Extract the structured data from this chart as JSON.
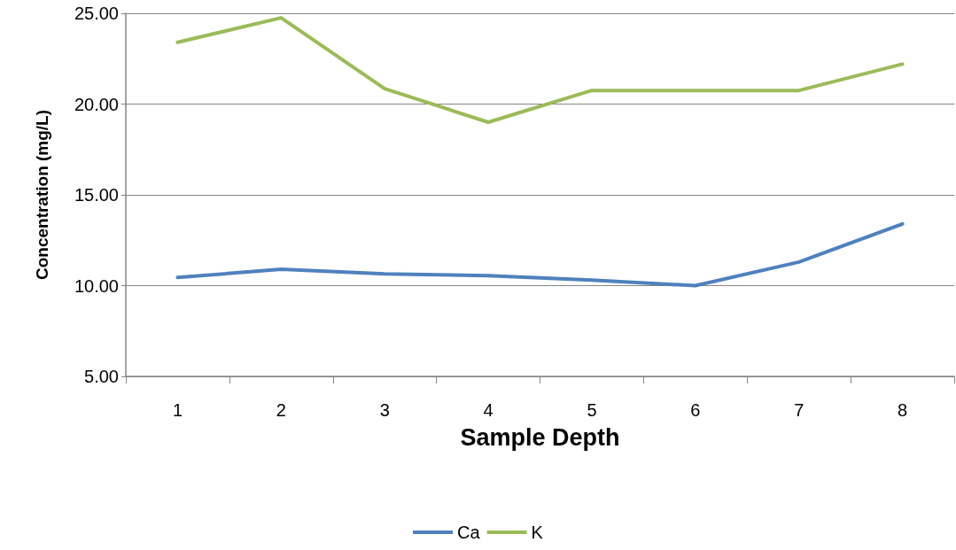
{
  "chart_data": {
    "type": "line",
    "xlabel": "Sample Depth",
    "ylabel": "Concentration (mg/L)",
    "categories": [
      "1",
      "2",
      "3",
      "4",
      "5",
      "6",
      "7",
      "8"
    ],
    "series": [
      {
        "name": "Ca",
        "color": "#4f81bd",
        "values": [
          10.45,
          10.9,
          10.65,
          10.55,
          10.3,
          10.0,
          11.3,
          13.4
        ]
      },
      {
        "name": "K",
        "color": "#9bbb59",
        "values": [
          23.4,
          24.75,
          20.85,
          19.0,
          20.75,
          20.75,
          20.75,
          22.2
        ]
      }
    ],
    "ylim": [
      5,
      25
    ],
    "yticks": [
      {
        "value": 5,
        "label": "5.00"
      },
      {
        "value": 10,
        "label": "10.00"
      },
      {
        "value": 15,
        "label": "15.00"
      },
      {
        "value": 20,
        "label": "20.00"
      },
      {
        "value": 25,
        "label": "25.00"
      }
    ],
    "grid": "y",
    "legend": "bottom",
    "marker": "none",
    "line_style": "solid"
  }
}
